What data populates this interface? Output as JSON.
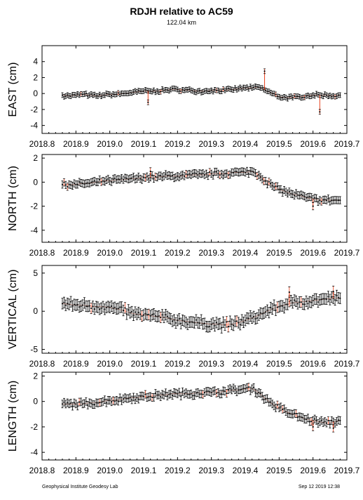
{
  "title": "RDJH relative to AC59",
  "subtitle": "122.04 km",
  "footer_left": "Geophysical Institute Geodesy Lab",
  "footer_right": "Sep 12 2019 12:38",
  "colors": {
    "point": "#000000",
    "errorbar": "#000000",
    "highlight": "#e8401c",
    "frame": "#000000"
  },
  "chart_data": [
    {
      "type": "scatter",
      "ylabel": "EAST (cm)",
      "xlim": [
        2018.8,
        2019.7
      ],
      "ylim": [
        -5,
        6
      ],
      "x_ticks": [
        "2018.8",
        "2018.9",
        "2019.0",
        "2019.1",
        "2019.2",
        "2019.3",
        "2019.4",
        "2019.5",
        "2019.6",
        "2019.7"
      ],
      "y_ticks": [
        -4,
        -2,
        0,
        2,
        4
      ],
      "error_bar": 0.3,
      "points": [
        [
          2018.86,
          -0.2
        ],
        [
          2018.88,
          -0.3
        ],
        [
          2018.9,
          -0.2
        ],
        [
          2018.92,
          -0.1
        ],
        [
          2018.94,
          -0.2
        ],
        [
          2018.96,
          -0.3
        ],
        [
          2018.98,
          -0.2
        ],
        [
          2019.0,
          -0.1
        ],
        [
          2019.02,
          -0.1
        ],
        [
          2019.04,
          0.0
        ],
        [
          2019.06,
          0.1
        ],
        [
          2019.08,
          0.2
        ],
        [
          2019.1,
          0.3
        ],
        [
          2019.12,
          0.3
        ],
        [
          2019.14,
          0.3
        ],
        [
          2019.16,
          0.4
        ],
        [
          2019.18,
          0.5
        ],
        [
          2019.2,
          0.5
        ],
        [
          2019.22,
          0.4
        ],
        [
          2019.24,
          0.4
        ],
        [
          2019.26,
          0.3
        ],
        [
          2019.28,
          0.3
        ],
        [
          2019.3,
          0.4
        ],
        [
          2019.32,
          0.4
        ],
        [
          2019.34,
          0.4
        ],
        [
          2019.36,
          0.5
        ],
        [
          2019.38,
          0.6
        ],
        [
          2019.4,
          0.7
        ],
        [
          2019.42,
          0.7
        ],
        [
          2019.44,
          0.8
        ],
        [
          2019.46,
          0.4
        ],
        [
          2019.48,
          0.0
        ],
        [
          2019.5,
          -0.4
        ],
        [
          2019.52,
          -0.5
        ],
        [
          2019.54,
          -0.5
        ],
        [
          2019.56,
          -0.4
        ],
        [
          2019.58,
          -0.3
        ],
        [
          2019.6,
          -0.2
        ],
        [
          2019.62,
          -0.2
        ],
        [
          2019.64,
          -0.2
        ],
        [
          2019.66,
          -0.3
        ],
        [
          2019.68,
          -0.2
        ]
      ],
      "outliers": [
        [
          2019.113,
          -1.1
        ],
        [
          2019.457,
          2.8
        ],
        [
          2019.62,
          -2.3
        ]
      ]
    },
    {
      "type": "scatter",
      "ylabel": "NORTH (cm)",
      "xlim": [
        2018.8,
        2019.7
      ],
      "ylim": [
        -5,
        2.3
      ],
      "x_ticks": [
        "2018.8",
        "2018.9",
        "2019.0",
        "2019.1",
        "2019.2",
        "2019.3",
        "2019.4",
        "2019.5",
        "2019.6",
        "2019.7"
      ],
      "y_ticks": [
        -4,
        -2,
        0,
        2
      ],
      "error_bar": 0.3,
      "points": [
        [
          2018.86,
          -0.2
        ],
        [
          2018.88,
          -0.2
        ],
        [
          2018.9,
          -0.2
        ],
        [
          2018.92,
          -0.1
        ],
        [
          2018.94,
          -0.1
        ],
        [
          2018.96,
          0.0
        ],
        [
          2018.98,
          0.1
        ],
        [
          2019.0,
          0.1
        ],
        [
          2019.02,
          0.2
        ],
        [
          2019.04,
          0.2
        ],
        [
          2019.06,
          0.3
        ],
        [
          2019.08,
          0.3
        ],
        [
          2019.1,
          0.4
        ],
        [
          2019.12,
          0.4
        ],
        [
          2019.14,
          0.4
        ],
        [
          2019.16,
          0.5
        ],
        [
          2019.18,
          0.5
        ],
        [
          2019.2,
          0.5
        ],
        [
          2019.22,
          0.5
        ],
        [
          2019.24,
          0.6
        ],
        [
          2019.26,
          0.6
        ],
        [
          2019.28,
          0.6
        ],
        [
          2019.3,
          0.7
        ],
        [
          2019.32,
          0.7
        ],
        [
          2019.34,
          0.7
        ],
        [
          2019.36,
          0.8
        ],
        [
          2019.38,
          0.8
        ],
        [
          2019.4,
          0.8
        ],
        [
          2019.42,
          0.9
        ],
        [
          2019.44,
          0.6
        ],
        [
          2019.46,
          0.1
        ],
        [
          2019.48,
          -0.3
        ],
        [
          2019.5,
          -0.6
        ],
        [
          2019.52,
          -0.8
        ],
        [
          2019.54,
          -1.0
        ],
        [
          2019.56,
          -1.1
        ],
        [
          2019.58,
          -1.3
        ],
        [
          2019.6,
          -1.4
        ],
        [
          2019.62,
          -1.5
        ],
        [
          2019.64,
          -1.5
        ],
        [
          2019.66,
          -1.5
        ],
        [
          2019.68,
          -1.5
        ]
      ],
      "outliers": [
        [
          2019.12,
          0.9
        ],
        [
          2019.6,
          -2.0
        ]
      ]
    },
    {
      "type": "scatter",
      "ylabel": "VERTICAL (cm)",
      "xlim": [
        2018.8,
        2019.7
      ],
      "ylim": [
        -5.5,
        6
      ],
      "x_ticks": [
        "2018.8",
        "2018.9",
        "2019.0",
        "2019.1",
        "2019.2",
        "2019.3",
        "2019.4",
        "2019.5",
        "2019.6",
        "2019.7"
      ],
      "y_ticks": [
        -5,
        0,
        5
      ],
      "error_bar": 0.7,
      "points": [
        [
          2018.86,
          1.0
        ],
        [
          2018.88,
          0.9
        ],
        [
          2018.9,
          0.8
        ],
        [
          2018.92,
          0.8
        ],
        [
          2018.94,
          0.7
        ],
        [
          2018.96,
          0.6
        ],
        [
          2018.98,
          0.6
        ],
        [
          2019.0,
          0.5
        ],
        [
          2019.02,
          0.3
        ],
        [
          2019.04,
          0.1
        ],
        [
          2019.06,
          -0.2
        ],
        [
          2019.08,
          -0.4
        ],
        [
          2019.1,
          -0.5
        ],
        [
          2019.12,
          -0.6
        ],
        [
          2019.14,
          -0.7
        ],
        [
          2019.16,
          -0.8
        ],
        [
          2019.18,
          -1.0
        ],
        [
          2019.2,
          -1.2
        ],
        [
          2019.22,
          -1.3
        ],
        [
          2019.24,
          -1.4
        ],
        [
          2019.26,
          -1.5
        ],
        [
          2019.28,
          -1.6
        ],
        [
          2019.3,
          -1.7
        ],
        [
          2019.32,
          -1.7
        ],
        [
          2019.34,
          -1.8
        ],
        [
          2019.36,
          -1.7
        ],
        [
          2019.38,
          -1.5
        ],
        [
          2019.4,
          -1.2
        ],
        [
          2019.42,
          -0.9
        ],
        [
          2019.44,
          -0.5
        ],
        [
          2019.46,
          -0.1
        ],
        [
          2019.48,
          0.3
        ],
        [
          2019.5,
          0.6
        ],
        [
          2019.52,
          0.9
        ],
        [
          2019.54,
          1.1
        ],
        [
          2019.56,
          1.2
        ],
        [
          2019.58,
          1.3
        ],
        [
          2019.6,
          1.4
        ],
        [
          2019.62,
          1.5
        ],
        [
          2019.64,
          1.6
        ],
        [
          2019.66,
          1.7
        ],
        [
          2019.68,
          1.7
        ]
      ],
      "outliers": [
        [
          2019.53,
          2.5
        ],
        [
          2019.66,
          2.6
        ]
      ]
    },
    {
      "type": "scatter",
      "ylabel": "LENGTH (cm)",
      "xlim": [
        2018.8,
        2019.7
      ],
      "ylim": [
        -4.6,
        2.3
      ],
      "x_ticks": [
        "2018.8",
        "2018.9",
        "2019.0",
        "2019.1",
        "2019.2",
        "2019.3",
        "2019.4",
        "2019.5",
        "2019.6",
        "2019.7"
      ],
      "y_ticks": [
        -4,
        -2,
        0,
        2
      ],
      "error_bar": 0.3,
      "points": [
        [
          2018.86,
          -0.2
        ],
        [
          2018.88,
          -0.2
        ],
        [
          2018.9,
          -0.2
        ],
        [
          2018.92,
          -0.2
        ],
        [
          2018.94,
          -0.1
        ],
        [
          2018.96,
          -0.1
        ],
        [
          2018.98,
          0.0
        ],
        [
          2019.0,
          0.1
        ],
        [
          2019.02,
          0.1
        ],
        [
          2019.04,
          0.2
        ],
        [
          2019.06,
          0.3
        ],
        [
          2019.08,
          0.3
        ],
        [
          2019.1,
          0.4
        ],
        [
          2019.12,
          0.4
        ],
        [
          2019.14,
          0.5
        ],
        [
          2019.16,
          0.5
        ],
        [
          2019.18,
          0.6
        ],
        [
          2019.2,
          0.6
        ],
        [
          2019.22,
          0.6
        ],
        [
          2019.24,
          0.6
        ],
        [
          2019.26,
          0.7
        ],
        [
          2019.28,
          0.7
        ],
        [
          2019.3,
          0.7
        ],
        [
          2019.32,
          0.7
        ],
        [
          2019.34,
          0.8
        ],
        [
          2019.36,
          0.9
        ],
        [
          2019.38,
          0.9
        ],
        [
          2019.4,
          1.0
        ],
        [
          2019.42,
          1.0
        ],
        [
          2019.44,
          0.7
        ],
        [
          2019.46,
          0.2
        ],
        [
          2019.48,
          -0.2
        ],
        [
          2019.5,
          -0.5
        ],
        [
          2019.52,
          -0.8
        ],
        [
          2019.54,
          -1.0
        ],
        [
          2019.56,
          -1.2
        ],
        [
          2019.58,
          -1.4
        ],
        [
          2019.6,
          -1.5
        ],
        [
          2019.62,
          -1.6
        ],
        [
          2019.64,
          -1.7
        ],
        [
          2019.66,
          -1.6
        ],
        [
          2019.68,
          -1.5
        ]
      ],
      "outliers": [
        [
          2019.6,
          -2.0
        ],
        [
          2019.66,
          -2.1
        ]
      ]
    }
  ]
}
